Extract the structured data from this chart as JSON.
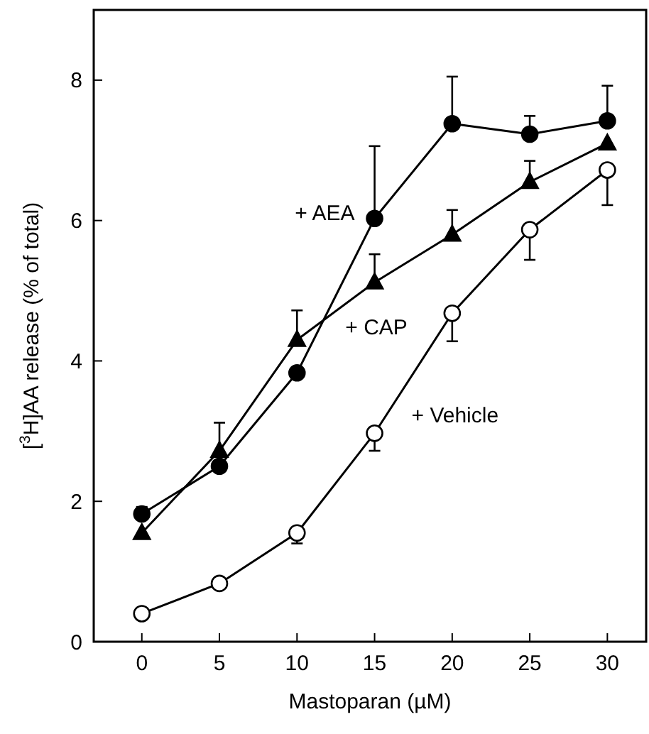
{
  "chart_data": {
    "type": "line",
    "xlabel": "Mastoparan (µM)",
    "ylabel": "[$^{3}$H]AA release (% of total)",
    "x": [
      0,
      5,
      10,
      15,
      20,
      25,
      30
    ],
    "xlim": [
      -3.1,
      32.5
    ],
    "xticks": [
      0,
      5,
      10,
      15,
      20,
      25,
      30
    ],
    "ylim": [
      0,
      9
    ],
    "yticks": [
      0,
      2,
      4,
      6,
      8
    ],
    "grid": false,
    "line_style": "solid",
    "series": [
      {
        "name": "+ AEA",
        "color": "#000000",
        "marker": "circle",
        "values": [
          1.82,
          2.5,
          3.83,
          6.03,
          7.38,
          7.23,
          7.42
        ],
        "errors": [
          [
            1.82,
            1.92
          ],
          null,
          null,
          [
            6.03,
            7.06
          ],
          [
            7.38,
            8.05
          ],
          [
            7.23,
            7.49
          ],
          [
            7.42,
            7.92
          ]
        ]
      },
      {
        "name": "+ CAP",
        "color": "#000000",
        "marker": "triangle",
        "values": [
          1.55,
          2.72,
          4.3,
          5.12,
          5.8,
          6.55,
          7.1
        ],
        "errors": [
          null,
          [
            2.72,
            3.12
          ],
          [
            4.3,
            4.72
          ],
          [
            5.12,
            5.52
          ],
          [
            5.8,
            6.15
          ],
          [
            6.55,
            6.85
          ],
          null
        ]
      },
      {
        "name": "+ Vehicle",
        "color": "#000000",
        "colors": [
          "#ffffff",
          "#ffffff",
          "#ffffff",
          "#ffffff",
          "#ffffff",
          "#ffffff",
          "#ffffff"
        ],
        "marker": "circle",
        "values": [
          0.4,
          0.83,
          1.55,
          2.97,
          4.68,
          5.87,
          6.72
        ],
        "errors": [
          null,
          null,
          [
            1.4,
            1.55
          ],
          [
            2.72,
            2.97
          ],
          [
            4.28,
            4.68
          ],
          [
            5.44,
            5.87
          ],
          [
            6.22,
            6.72
          ]
        ]
      }
    ]
  }
}
